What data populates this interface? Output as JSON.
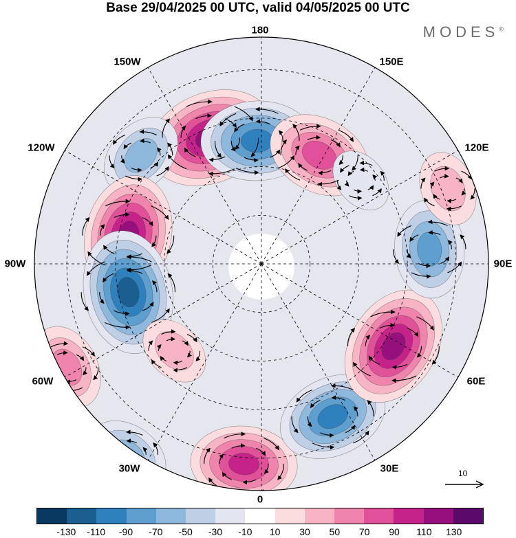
{
  "title": "Base 29/04/2025 00 UTC, valid 04/05/2025 00 UTC",
  "brand": "MODES",
  "brand_mark": "®",
  "longitude_labels": {
    "top": "180",
    "bottom": "0",
    "left": "90W",
    "right": "90E",
    "ul1": "150W",
    "ul2": "120W",
    "ur1": "150E",
    "ur2": "120E",
    "ll1": "60W",
    "ll2": "30W",
    "lr1": "60E",
    "lr2": "30E"
  },
  "colorbar": {
    "colors": [
      "#08395e",
      "#1b5f91",
      "#2f81bd",
      "#5f9fcf",
      "#8eb8dc",
      "#bfcfe6",
      "#e3e5f0",
      "#ffffff",
      "#fbdde0",
      "#f6b4c4",
      "#ef85ac",
      "#e1519a",
      "#c52389",
      "#96107d",
      "#5b0a6c"
    ],
    "ticks": [
      "-130",
      "-110",
      "-90",
      "-70",
      "-50",
      "-30",
      "-10",
      "10",
      "30",
      "50",
      "70",
      "90",
      "110",
      "130"
    ]
  },
  "reference_vector": {
    "label": "10"
  },
  "anomaly_centers": [
    {
      "lon": -158,
      "lat": 48,
      "value": 125
    },
    {
      "lon": -178,
      "lat": 52,
      "value": -100
    },
    {
      "lon": 152,
      "lat": 52,
      "value": 85
    },
    {
      "lon": -132,
      "lat": 40,
      "value": -55
    },
    {
      "lon": -102,
      "lat": 48,
      "value": 115
    },
    {
      "lon": -78,
      "lat": 48,
      "value": -120
    },
    {
      "lon": -62,
      "lat": 22,
      "value": 55
    },
    {
      "lon": -45,
      "lat": 52,
      "value": 30
    },
    {
      "lon": -35,
      "lat": 18,
      "value": -50
    },
    {
      "lon": -5,
      "lat": 28,
      "value": 90
    },
    {
      "lon": 25,
      "lat": 38,
      "value": -95
    },
    {
      "lon": 58,
      "lat": 42,
      "value": 115
    },
    {
      "lon": 95,
      "lat": 38,
      "value": -75
    },
    {
      "lon": 112,
      "lat": 28,
      "value": 35
    },
    {
      "lon": 130,
      "lat": 50,
      "value": -20
    }
  ]
}
